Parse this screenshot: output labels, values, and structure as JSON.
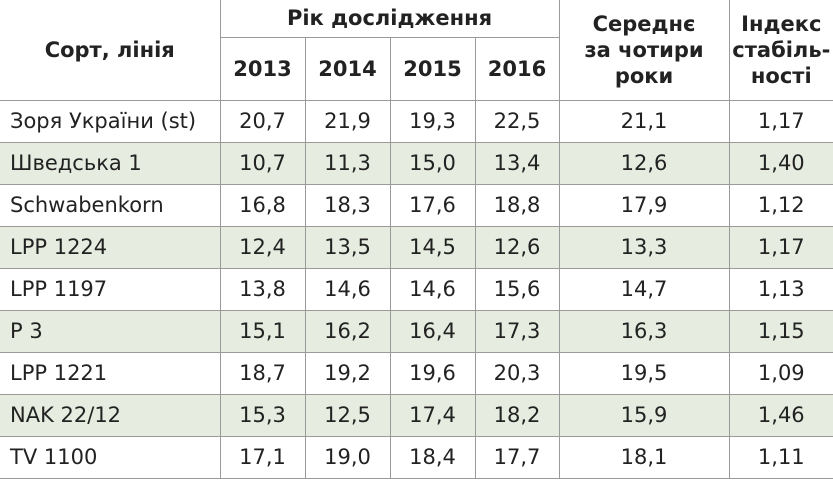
{
  "header": {
    "variety": "Сорт, лінія",
    "years_group": "Рік дослідження",
    "years": [
      "2013",
      "2014",
      "2015",
      "2016"
    ],
    "average": [
      "Середнє",
      "за чотири",
      "роки"
    ],
    "index": [
      "Індекс",
      "стабіль-",
      "ності"
    ]
  },
  "table": {
    "rows": [
      [
        "Зоря України (st)",
        "20,7",
        "21,9",
        "19,3",
        "22,5",
        "21,1",
        "1,17"
      ],
      [
        "Шведська 1",
        "10,7",
        "11,3",
        "15,0",
        "13,4",
        "12,6",
        "1,40"
      ],
      [
        "Schwabenkorn",
        "16,8",
        "18,3",
        "17,6",
        "18,8",
        "17,9",
        "1,12"
      ],
      [
        "LPP 1224",
        "12,4",
        "13,5",
        "14,5",
        "12,6",
        "13,3",
        "1,17"
      ],
      [
        "LPP 1197",
        "13,8",
        "14,6",
        "14,6",
        "15,6",
        "14,7",
        "1,13"
      ],
      [
        "Р 3",
        "15,1",
        "16,2",
        "16,4",
        "17,3",
        "16,3",
        "1,15"
      ],
      [
        "LPP 1221",
        "18,7",
        "19,2",
        "19,6",
        "20,3",
        "19,5",
        "1,09"
      ],
      [
        "NAK 22/12",
        "15,3",
        "12,5",
        "17,4",
        "18,2",
        "15,9",
        "1,46"
      ],
      [
        "TV 1100",
        "17,1",
        "19,0",
        "18,4",
        "17,7",
        "18,1",
        "1,11"
      ]
    ]
  }
}
